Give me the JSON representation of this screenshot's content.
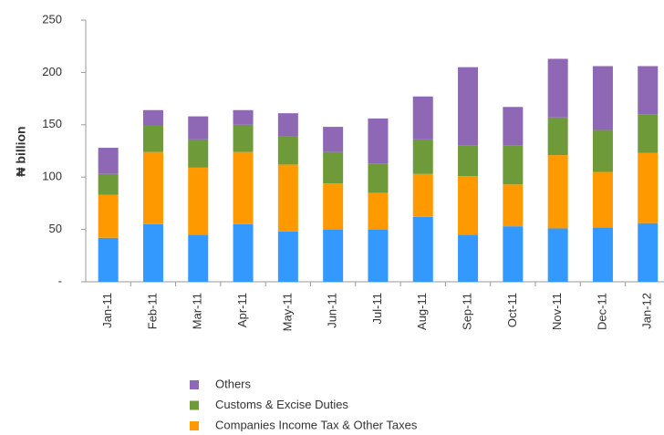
{
  "chart_data": {
    "type": "stacked_bar",
    "y_label": "₦ billion",
    "categories": [
      "Jan-11",
      "Feb-11",
      "Mar-11",
      "Apr-11",
      "May-11",
      "Jun-11",
      "Jul-11",
      "Aug-11",
      "Sep-11",
      "Oct-11",
      "Nov-11",
      "Dec-11",
      "Jan-12"
    ],
    "series": [
      {
        "color": "#3399ff",
        "values": [
          42,
          55,
          45,
          55,
          48,
          50,
          50,
          62,
          45,
          53,
          51,
          52,
          56
        ]
      },
      {
        "name": "Companies Income Tax & Other Taxes",
        "color": "#ff9900",
        "values": [
          41,
          69,
          64,
          69,
          64,
          44,
          35,
          41,
          56,
          40,
          70,
          53,
          67
        ]
      },
      {
        "name": "Customs & Excise Duties",
        "color": "#6e9a3a",
        "values": [
          20,
          25,
          27,
          26,
          27,
          30,
          28,
          33,
          29,
          37,
          36,
          40,
          37
        ]
      },
      {
        "name": "Others",
        "color": "#8e67b5",
        "values": [
          25,
          15,
          22,
          14,
          22,
          24,
          43,
          41,
          75,
          37,
          56,
          61,
          46
        ]
      }
    ],
    "ylim": [
      0,
      250
    ],
    "yticks": [
      {
        "value": 0,
        "label": "-"
      },
      50,
      100,
      150,
      200,
      250
    ]
  }
}
